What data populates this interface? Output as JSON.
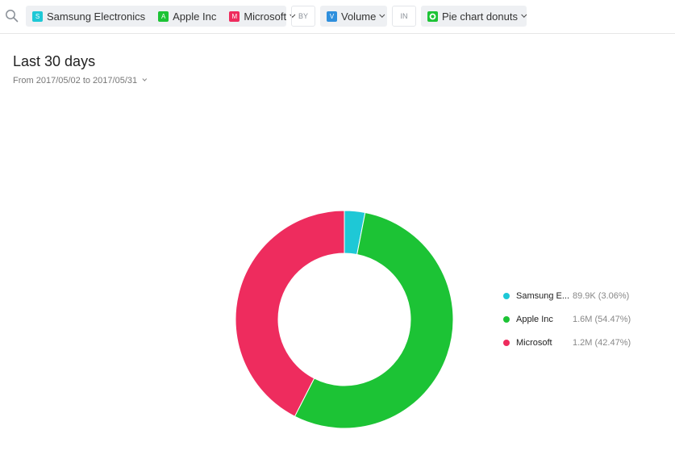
{
  "toolbar": {
    "entities": [
      {
        "badge": "S",
        "label": "Samsung Electronics",
        "color": "#1ec8d6"
      },
      {
        "badge": "A",
        "label": "Apple Inc",
        "color": "#1cc335"
      },
      {
        "badge": "M",
        "label": "Microsoft",
        "color": "#ee2c5e"
      }
    ],
    "by_label": "BY",
    "measure": {
      "badge": "V",
      "label": "Volume",
      "color": "#2e8fdd"
    },
    "in_label": "IN",
    "chart_type": {
      "label": "Pie chart donuts",
      "color": "#1cc335"
    }
  },
  "header": {
    "title": "Last 30 days",
    "date_range": "From 2017/05/02 to 2017/05/31"
  },
  "chart_data": {
    "type": "pie",
    "donut": true,
    "legend_position": "right",
    "series": [
      {
        "name": "Samsung E...",
        "value": 89900,
        "percent": 3.06,
        "color": "#1ec8d6",
        "label": "89.9K (3.06%)"
      },
      {
        "name": "Apple Inc",
        "value": 1600000,
        "percent": 54.47,
        "color": "#1cc335",
        "label": "1.6M (54.47%)"
      },
      {
        "name": "Microsoft",
        "value": 1200000,
        "percent": 42.47,
        "color": "#ee2c5e",
        "label": "1.2M (42.47%)"
      }
    ]
  }
}
